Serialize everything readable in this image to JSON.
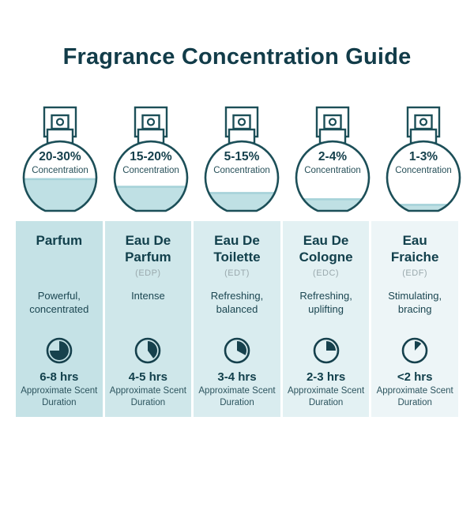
{
  "page": {
    "title": "Fragrance Concentration Guide"
  },
  "colors": {
    "title_text": "#123c49",
    "outline": "#1c4f58",
    "liquid": "#bfe0e4",
    "liquid_surface": "#a6d2d9",
    "abbr_gray": "#9aa9ad",
    "card_bgs": [
      "#c5e2e6",
      "#cfe7ea",
      "#d9ecef",
      "#e3f1f3",
      "#edf5f7"
    ]
  },
  "bottles": [
    {
      "percent": "20-30%",
      "label": "Concentration",
      "fill_percent": 47
    },
    {
      "percent": "15-20%",
      "label": "Concentration",
      "fill_percent": 36
    },
    {
      "percent": "5-15%",
      "label": "Concentration",
      "fill_percent": 27
    },
    {
      "percent": "2-4%",
      "label": "Concentration",
      "fill_percent": 18
    },
    {
      "percent": "1-3%",
      "label": "Concentration",
      "fill_percent": 10
    }
  ],
  "cards": [
    {
      "title": "Parfum",
      "abbr": "",
      "description": "Powerful, concentrated",
      "pie_percent": 75,
      "duration": "6-8 hrs",
      "note": "Approximate Scent Duration"
    },
    {
      "title": "Eau De Parfum",
      "abbr": "(EDP)",
      "description": "Intense",
      "pie_percent": 40,
      "duration": "4-5 hrs",
      "note": "Approximate Scent Duration"
    },
    {
      "title": "Eau De Toilette",
      "abbr": "(EDT)",
      "description": "Refreshing, balanced",
      "pie_percent": 33,
      "duration": "3-4 hrs",
      "note": "Approximate Scent Duration"
    },
    {
      "title": "Eau De Cologne",
      "abbr": "(EDC)",
      "description": "Refreshing, uplifting",
      "pie_percent": 25,
      "duration": "2-3 hrs",
      "note": "Approximate Scent Duration"
    },
    {
      "title": "Eau Fraiche",
      "abbr": "(EDF)",
      "description": "Stimulating, bracing",
      "pie_percent": 12,
      "duration": "<2 hrs",
      "note": "Approximate Scent Duration"
    }
  ]
}
